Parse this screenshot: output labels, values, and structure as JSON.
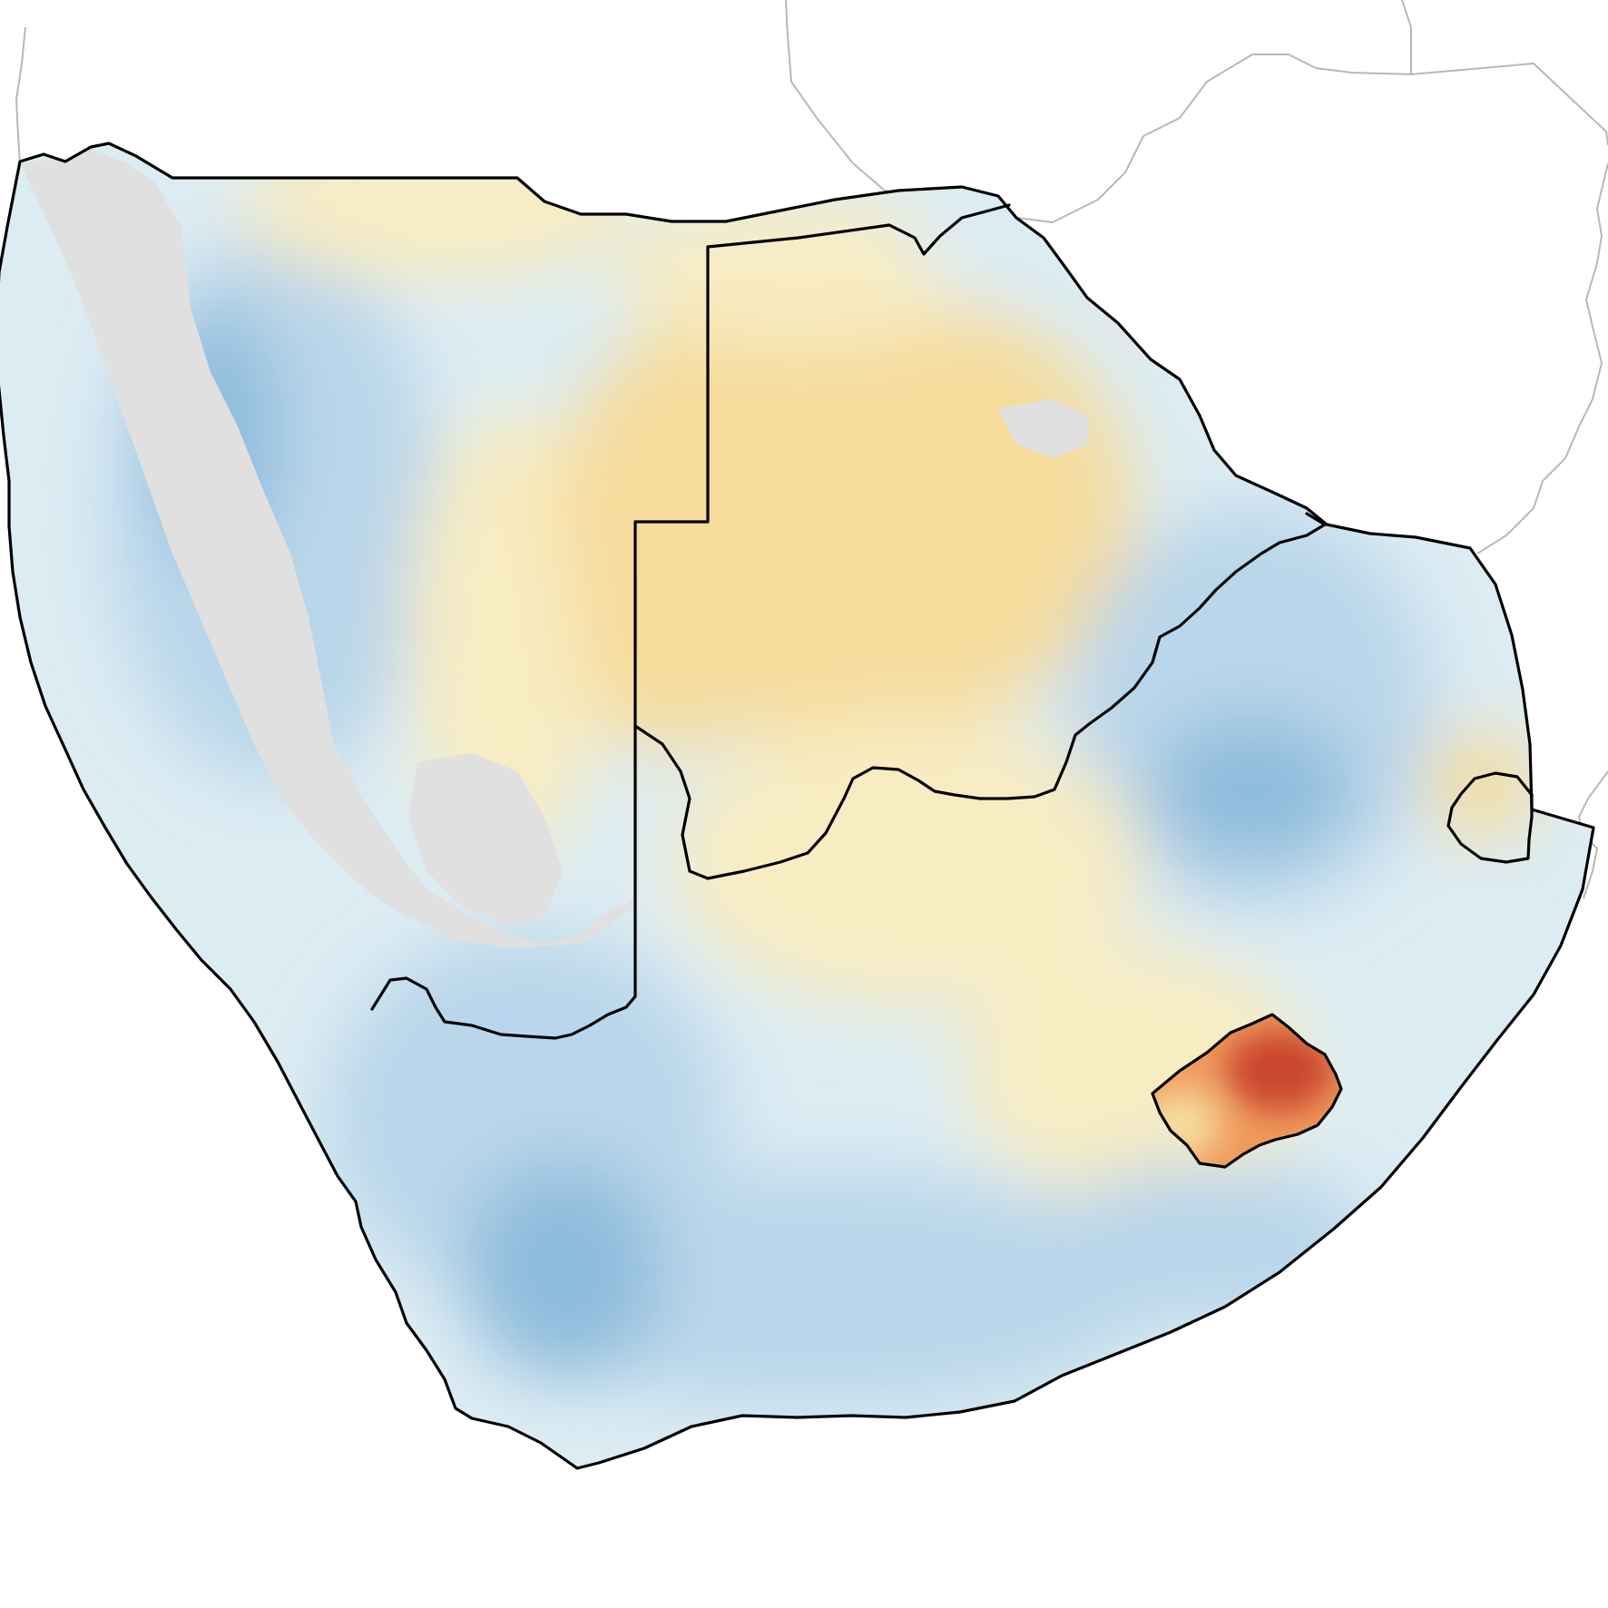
{
  "map": {
    "type": "choropleth-raster",
    "labels": [],
    "colors": {
      "background": "#ffffff",
      "neighbor_border": "#b8b8b8",
      "country_border": "#000000",
      "no_data": "#e0e0e0",
      "cool_strong": "#8fbcdc",
      "cool_mid": "#b9d6ea",
      "cool_light": "#dcecf3",
      "neutral": "#eaf2e8",
      "warm_light": "#f8ecc3",
      "warm_mid": "#f6dc9c",
      "warm_strong": "#ef9a5c",
      "hot": "#c9452d"
    },
    "regions": [
      {
        "id": "namibia",
        "fill": "cool",
        "note_visible": false
      },
      {
        "id": "botswana",
        "fill": "warm"
      },
      {
        "id": "zimbabwe",
        "fill": "cool"
      },
      {
        "id": "south-africa",
        "fill": "cool"
      },
      {
        "id": "eswatini",
        "fill": "warm"
      },
      {
        "id": "lesotho",
        "fill": "hot"
      }
    ]
  }
}
